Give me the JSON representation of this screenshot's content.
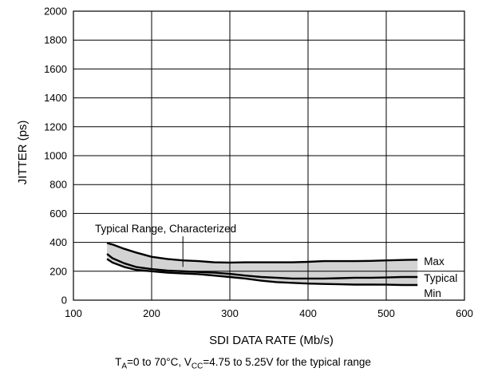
{
  "chart_data": {
    "type": "area",
    "xlabel": "SDI DATA RATE (Mb/s)",
    "ylabel": "JITTER (ps)",
    "xlim": [
      100,
      600
    ],
    "ylim": [
      0,
      2000
    ],
    "x_ticks": [
      100,
      200,
      300,
      400,
      500,
      600
    ],
    "y_ticks": [
      0,
      200,
      400,
      600,
      800,
      1000,
      1200,
      1400,
      1600,
      1800,
      2000
    ],
    "grid": true,
    "band": {
      "label": "Typical Range, Characterized",
      "color": "#d3d3d3",
      "x": [
        143,
        150,
        165,
        180,
        200,
        220,
        240,
        260,
        280,
        300,
        320,
        340,
        360,
        380,
        400,
        420,
        440,
        460,
        480,
        500,
        520,
        540
      ],
      "upper": [
        395,
        385,
        355,
        330,
        300,
        285,
        275,
        270,
        262,
        260,
        262,
        262,
        262,
        262,
        265,
        270,
        270,
        270,
        272,
        275,
        278,
        280
      ],
      "lower": [
        285,
        260,
        230,
        210,
        200,
        190,
        185,
        180,
        170,
        160,
        150,
        135,
        125,
        120,
        115,
        112,
        110,
        108,
        108,
        107,
        105,
        105
      ]
    },
    "series": [
      {
        "name": "Max",
        "x": [
          143,
          150,
          165,
          180,
          200,
          220,
          240,
          260,
          280,
          300,
          320,
          340,
          360,
          380,
          400,
          420,
          440,
          460,
          480,
          500,
          520,
          540
        ],
        "values": [
          395,
          385,
          355,
          330,
          300,
          285,
          275,
          270,
          262,
          260,
          262,
          262,
          262,
          262,
          265,
          270,
          270,
          270,
          272,
          275,
          278,
          280
        ]
      },
      {
        "name": "Typical",
        "x": [
          143,
          150,
          165,
          180,
          200,
          220,
          240,
          260,
          280,
          300,
          320,
          340,
          360,
          380,
          400,
          420,
          440,
          460,
          480,
          500,
          520,
          540
        ],
        "values": [
          320,
          290,
          255,
          230,
          215,
          205,
          200,
          195,
          190,
          182,
          170,
          160,
          155,
          150,
          150,
          150,
          152,
          155,
          155,
          157,
          160,
          160
        ]
      },
      {
        "name": "Min",
        "x": [
          143,
          150,
          165,
          180,
          200,
          220,
          240,
          260,
          280,
          300,
          320,
          340,
          360,
          380,
          400,
          420,
          440,
          460,
          480,
          500,
          520,
          540
        ],
        "values": [
          285,
          260,
          230,
          210,
          200,
          190,
          185,
          180,
          170,
          160,
          150,
          135,
          125,
          120,
          115,
          112,
          110,
          108,
          108,
          107,
          105,
          105
        ]
      }
    ],
    "footnote": {
      "ta_sym": "T",
      "ta_sub": "A",
      "ta_text": "=0 to 70°C, V",
      "vcc_sub": "CC",
      "vcc_text": "=4.75 to 5.25V for the typical range"
    }
  }
}
